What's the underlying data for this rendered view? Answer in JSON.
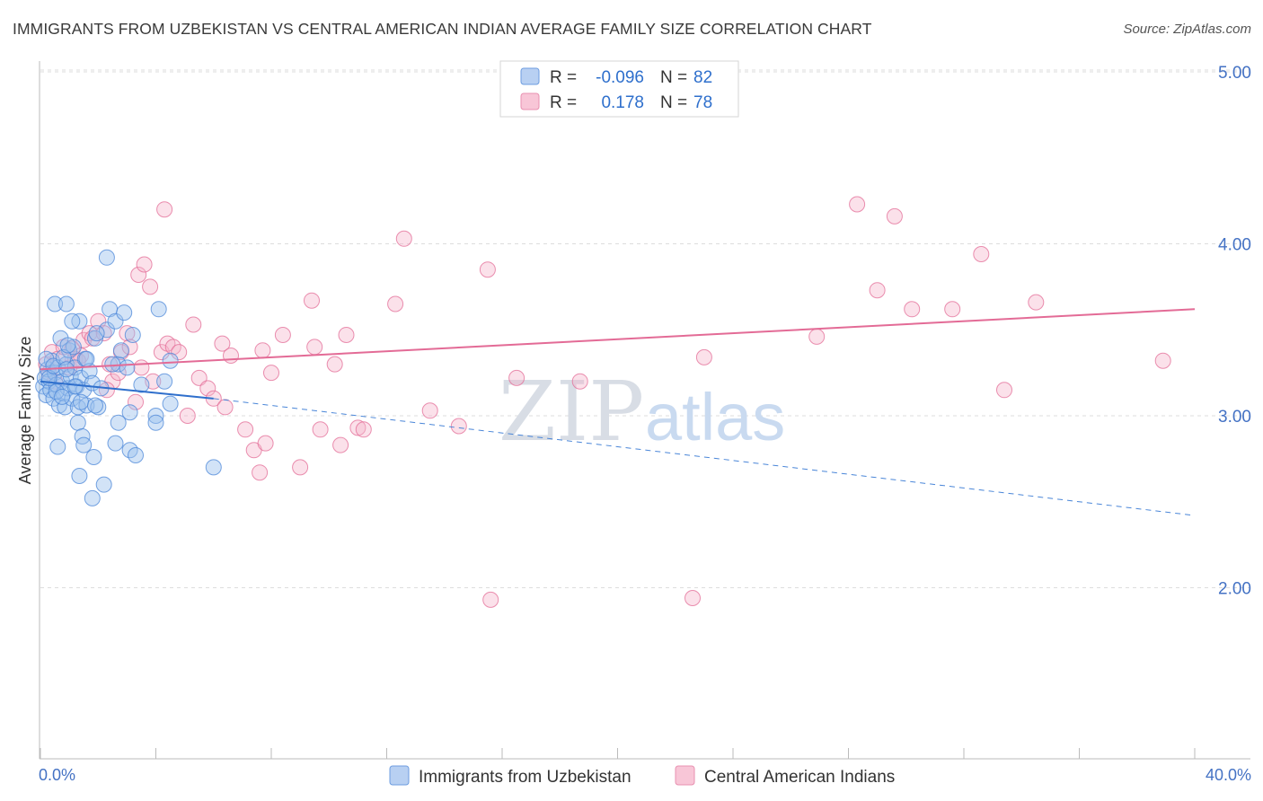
{
  "title": "IMMIGRANTS FROM UZBEKISTAN VS CENTRAL AMERICAN INDIAN AVERAGE FAMILY SIZE CORRELATION CHART",
  "source": "Source: ZipAtlas.com",
  "colors": {
    "blue": "#4a86d8",
    "blue_fill": "#9cc0ee",
    "pink": "#e36b96",
    "pink_fill": "#f6b5cb",
    "tick_text": "#4472c4"
  },
  "legend": {
    "rows": [
      {
        "r_label": "R =",
        "r_value": "-0.096",
        "n_label": "N =",
        "n_value": "82"
      },
      {
        "r_label": "R =",
        "r_value": "0.178",
        "n_label": "N =",
        "n_value": "78"
      }
    ]
  },
  "watermark": {
    "zip": "ZIP",
    "atlas": "atlas"
  },
  "chart_data": {
    "type": "scatter",
    "title": "IMMIGRANTS FROM UZBEKISTAN VS CENTRAL AMERICAN INDIAN AVERAGE FAMILY SIZE CORRELATION CHART",
    "xlabel": "",
    "ylabel": "Average Family Size",
    "xlim": [
      0,
      40
    ],
    "ylim": [
      1.0,
      5.1
    ],
    "x_tick_labels": [
      "0.0%",
      "40.0%"
    ],
    "y_ticks": [
      2.0,
      3.0,
      4.0,
      5.0
    ],
    "y_tick_labels": [
      "2.00",
      "3.00",
      "4.00",
      "5.00"
    ],
    "grid": "horizontal dashed",
    "legend_position": "top-center",
    "series": [
      {
        "name": "Immigrants from Uzbekistan",
        "color": "#4a86d8",
        "r": -0.096,
        "n": 82,
        "trend": {
          "x0": 0.0,
          "y0": 3.2,
          "x1": 6.0,
          "y1": 3.1,
          "dashed_to_x": 40.0,
          "dashed_to_y": 2.42
        },
        "points": [
          [
            0.1,
            3.17
          ],
          [
            0.15,
            3.22
          ],
          [
            0.2,
            3.12
          ],
          [
            0.25,
            3.27
          ],
          [
            0.3,
            3.2
          ],
          [
            0.35,
            3.15
          ],
          [
            0.4,
            3.32
          ],
          [
            0.45,
            3.1
          ],
          [
            0.5,
            3.25
          ],
          [
            0.55,
            3.18
          ],
          [
            0.6,
            3.28
          ],
          [
            0.65,
            3.06
          ],
          [
            0.7,
            3.45
          ],
          [
            0.75,
            3.2
          ],
          [
            0.8,
            3.13
          ],
          [
            0.85,
            3.05
          ],
          [
            0.9,
            3.3
          ],
          [
            0.95,
            3.16
          ],
          [
            1.0,
            3.38
          ],
          [
            1.05,
            3.23
          ],
          [
            1.1,
            3.1
          ],
          [
            1.15,
            3.4
          ],
          [
            1.2,
            3.28
          ],
          [
            1.25,
            3.17
          ],
          [
            1.3,
            3.05
          ],
          [
            1.35,
            3.55
          ],
          [
            1.4,
            3.22
          ],
          [
            1.5,
            3.15
          ],
          [
            1.55,
            3.33
          ],
          [
            1.6,
            3.06
          ],
          [
            1.7,
            3.26
          ],
          [
            1.8,
            3.19
          ],
          [
            1.9,
            3.45
          ],
          [
            2.0,
            3.05
          ],
          [
            2.1,
            3.16
          ],
          [
            2.3,
            3.5
          ],
          [
            2.4,
            3.62
          ],
          [
            2.6,
            3.55
          ],
          [
            2.7,
            3.3
          ],
          [
            2.8,
            3.38
          ],
          [
            2.9,
            3.6
          ],
          [
            3.0,
            3.28
          ],
          [
            3.2,
            3.47
          ],
          [
            3.5,
            3.18
          ],
          [
            0.5,
            3.65
          ],
          [
            0.9,
            3.65
          ],
          [
            1.1,
            3.55
          ],
          [
            0.6,
            2.82
          ],
          [
            1.3,
            2.96
          ],
          [
            1.35,
            2.65
          ],
          [
            1.45,
            2.88
          ],
          [
            1.5,
            2.83
          ],
          [
            1.8,
            2.52
          ],
          [
            1.85,
            2.76
          ],
          [
            2.2,
            2.6
          ],
          [
            2.6,
            2.84
          ],
          [
            2.7,
            2.96
          ],
          [
            3.1,
            2.8
          ],
          [
            3.3,
            2.77
          ],
          [
            3.1,
            3.02
          ],
          [
            4.0,
            3.0
          ],
          [
            4.0,
            2.96
          ],
          [
            4.3,
            3.2
          ],
          [
            4.5,
            3.07
          ],
          [
            6.0,
            2.7
          ],
          [
            2.3,
            3.92
          ],
          [
            4.1,
            3.62
          ],
          [
            4.5,
            3.32
          ],
          [
            0.2,
            3.33
          ],
          [
            0.3,
            3.22
          ],
          [
            0.45,
            3.29
          ],
          [
            0.55,
            3.14
          ],
          [
            0.75,
            3.11
          ],
          [
            0.8,
            3.34
          ],
          [
            0.9,
            3.27
          ],
          [
            1.2,
            3.17
          ],
          [
            1.4,
            3.08
          ],
          [
            1.6,
            3.33
          ],
          [
            1.9,
            3.06
          ],
          [
            2.5,
            3.3
          ],
          [
            0.95,
            3.41
          ],
          [
            1.95,
            3.48
          ]
        ]
      },
      {
        "name": "Central American Indians",
        "color": "#e36b96",
        "r": 0.178,
        "n": 78,
        "trend": {
          "x0": 0.0,
          "y0": 3.27,
          "x1": 40.0,
          "y1": 3.62
        },
        "points": [
          [
            0.2,
            3.3
          ],
          [
            0.3,
            3.25
          ],
          [
            0.4,
            3.37
          ],
          [
            0.5,
            3.2
          ],
          [
            0.6,
            3.33
          ],
          [
            0.8,
            3.4
          ],
          [
            1.0,
            3.28
          ],
          [
            1.1,
            3.39
          ],
          [
            1.2,
            3.33
          ],
          [
            1.4,
            3.35
          ],
          [
            1.5,
            3.44
          ],
          [
            1.7,
            3.48
          ],
          [
            1.8,
            3.45
          ],
          [
            2.0,
            3.55
          ],
          [
            2.2,
            3.48
          ],
          [
            2.4,
            3.3
          ],
          [
            2.5,
            3.2
          ],
          [
            2.7,
            3.25
          ],
          [
            2.8,
            3.37
          ],
          [
            3.0,
            3.48
          ],
          [
            3.1,
            3.4
          ],
          [
            3.3,
            3.08
          ],
          [
            3.4,
            3.82
          ],
          [
            3.6,
            3.88
          ],
          [
            3.8,
            3.75
          ],
          [
            3.9,
            3.2
          ],
          [
            4.2,
            3.37
          ],
          [
            4.3,
            4.2
          ],
          [
            4.4,
            3.42
          ],
          [
            4.6,
            3.4
          ],
          [
            4.8,
            3.37
          ],
          [
            5.3,
            3.53
          ],
          [
            5.5,
            3.22
          ],
          [
            5.8,
            3.16
          ],
          [
            6.0,
            3.1
          ],
          [
            6.3,
            3.42
          ],
          [
            6.6,
            3.35
          ],
          [
            7.1,
            2.92
          ],
          [
            7.4,
            2.8
          ],
          [
            7.6,
            2.67
          ],
          [
            7.7,
            3.38
          ],
          [
            7.8,
            2.84
          ],
          [
            8.0,
            3.25
          ],
          [
            8.4,
            3.47
          ],
          [
            9.0,
            2.7
          ],
          [
            9.5,
            3.4
          ],
          [
            9.4,
            3.67
          ],
          [
            9.7,
            2.92
          ],
          [
            10.2,
            3.3
          ],
          [
            10.4,
            2.83
          ],
          [
            10.6,
            3.47
          ],
          [
            11.0,
            2.93
          ],
          [
            11.2,
            2.92
          ],
          [
            12.3,
            3.65
          ],
          [
            12.6,
            4.03
          ],
          [
            13.5,
            3.03
          ],
          [
            14.5,
            2.94
          ],
          [
            15.5,
            3.85
          ],
          [
            15.6,
            1.93
          ],
          [
            16.5,
            3.22
          ],
          [
            18.7,
            3.2
          ],
          [
            22.6,
            1.94
          ],
          [
            23.0,
            3.34
          ],
          [
            26.9,
            3.46
          ],
          [
            28.3,
            4.23
          ],
          [
            29.0,
            3.73
          ],
          [
            29.6,
            4.16
          ],
          [
            30.2,
            3.62
          ],
          [
            31.6,
            3.62
          ],
          [
            32.6,
            3.94
          ],
          [
            33.4,
            3.15
          ],
          [
            34.5,
            3.66
          ],
          [
            38.9,
            3.32
          ],
          [
            1.3,
            3.32
          ],
          [
            3.5,
            3.28
          ],
          [
            5.1,
            3.0
          ],
          [
            6.4,
            3.05
          ],
          [
            2.3,
            3.15
          ]
        ]
      }
    ]
  },
  "bottom_legend": {
    "items": [
      {
        "label": "Immigrants from Uzbekistan"
      },
      {
        "label": "Central American Indians"
      }
    ]
  }
}
